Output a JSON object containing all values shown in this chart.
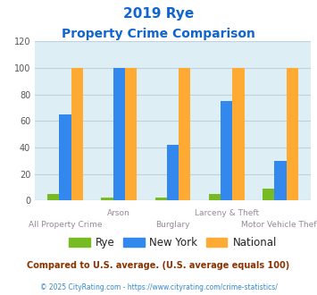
{
  "title_line1": "2019 Rye",
  "title_line2": "Property Crime Comparison",
  "categories": [
    "All Property Crime",
    "Arson",
    "Burglary",
    "Larceny & Theft",
    "Motor Vehicle Theft"
  ],
  "rye_values": [
    5,
    2,
    2,
    5,
    9
  ],
  "newyork_values": [
    65,
    100,
    42,
    75,
    30
  ],
  "national_values": [
    100,
    100,
    100,
    100,
    100
  ],
  "rye_color": "#77bb22",
  "newyork_color": "#3388ee",
  "national_color": "#ffaa33",
  "ylim": [
    0,
    120
  ],
  "yticks": [
    0,
    20,
    40,
    60,
    80,
    100,
    120
  ],
  "title_color": "#1166cc",
  "xlabel_color": "#998899",
  "bar_width": 0.22,
  "plot_bg": "#ddeef5",
  "fig_bg": "#ffffff",
  "footnote1": "Compared to U.S. average. (U.S. average equals 100)",
  "footnote2": "© 2025 CityRating.com - https://www.cityrating.com/crime-statistics/",
  "footnote1_color": "#883300",
  "footnote2_color": "#3388cc",
  "legend_labels": [
    "Rye",
    "New York",
    "National"
  ],
  "legend_text_color": "#222222",
  "grid_color": "#c0d0dd"
}
